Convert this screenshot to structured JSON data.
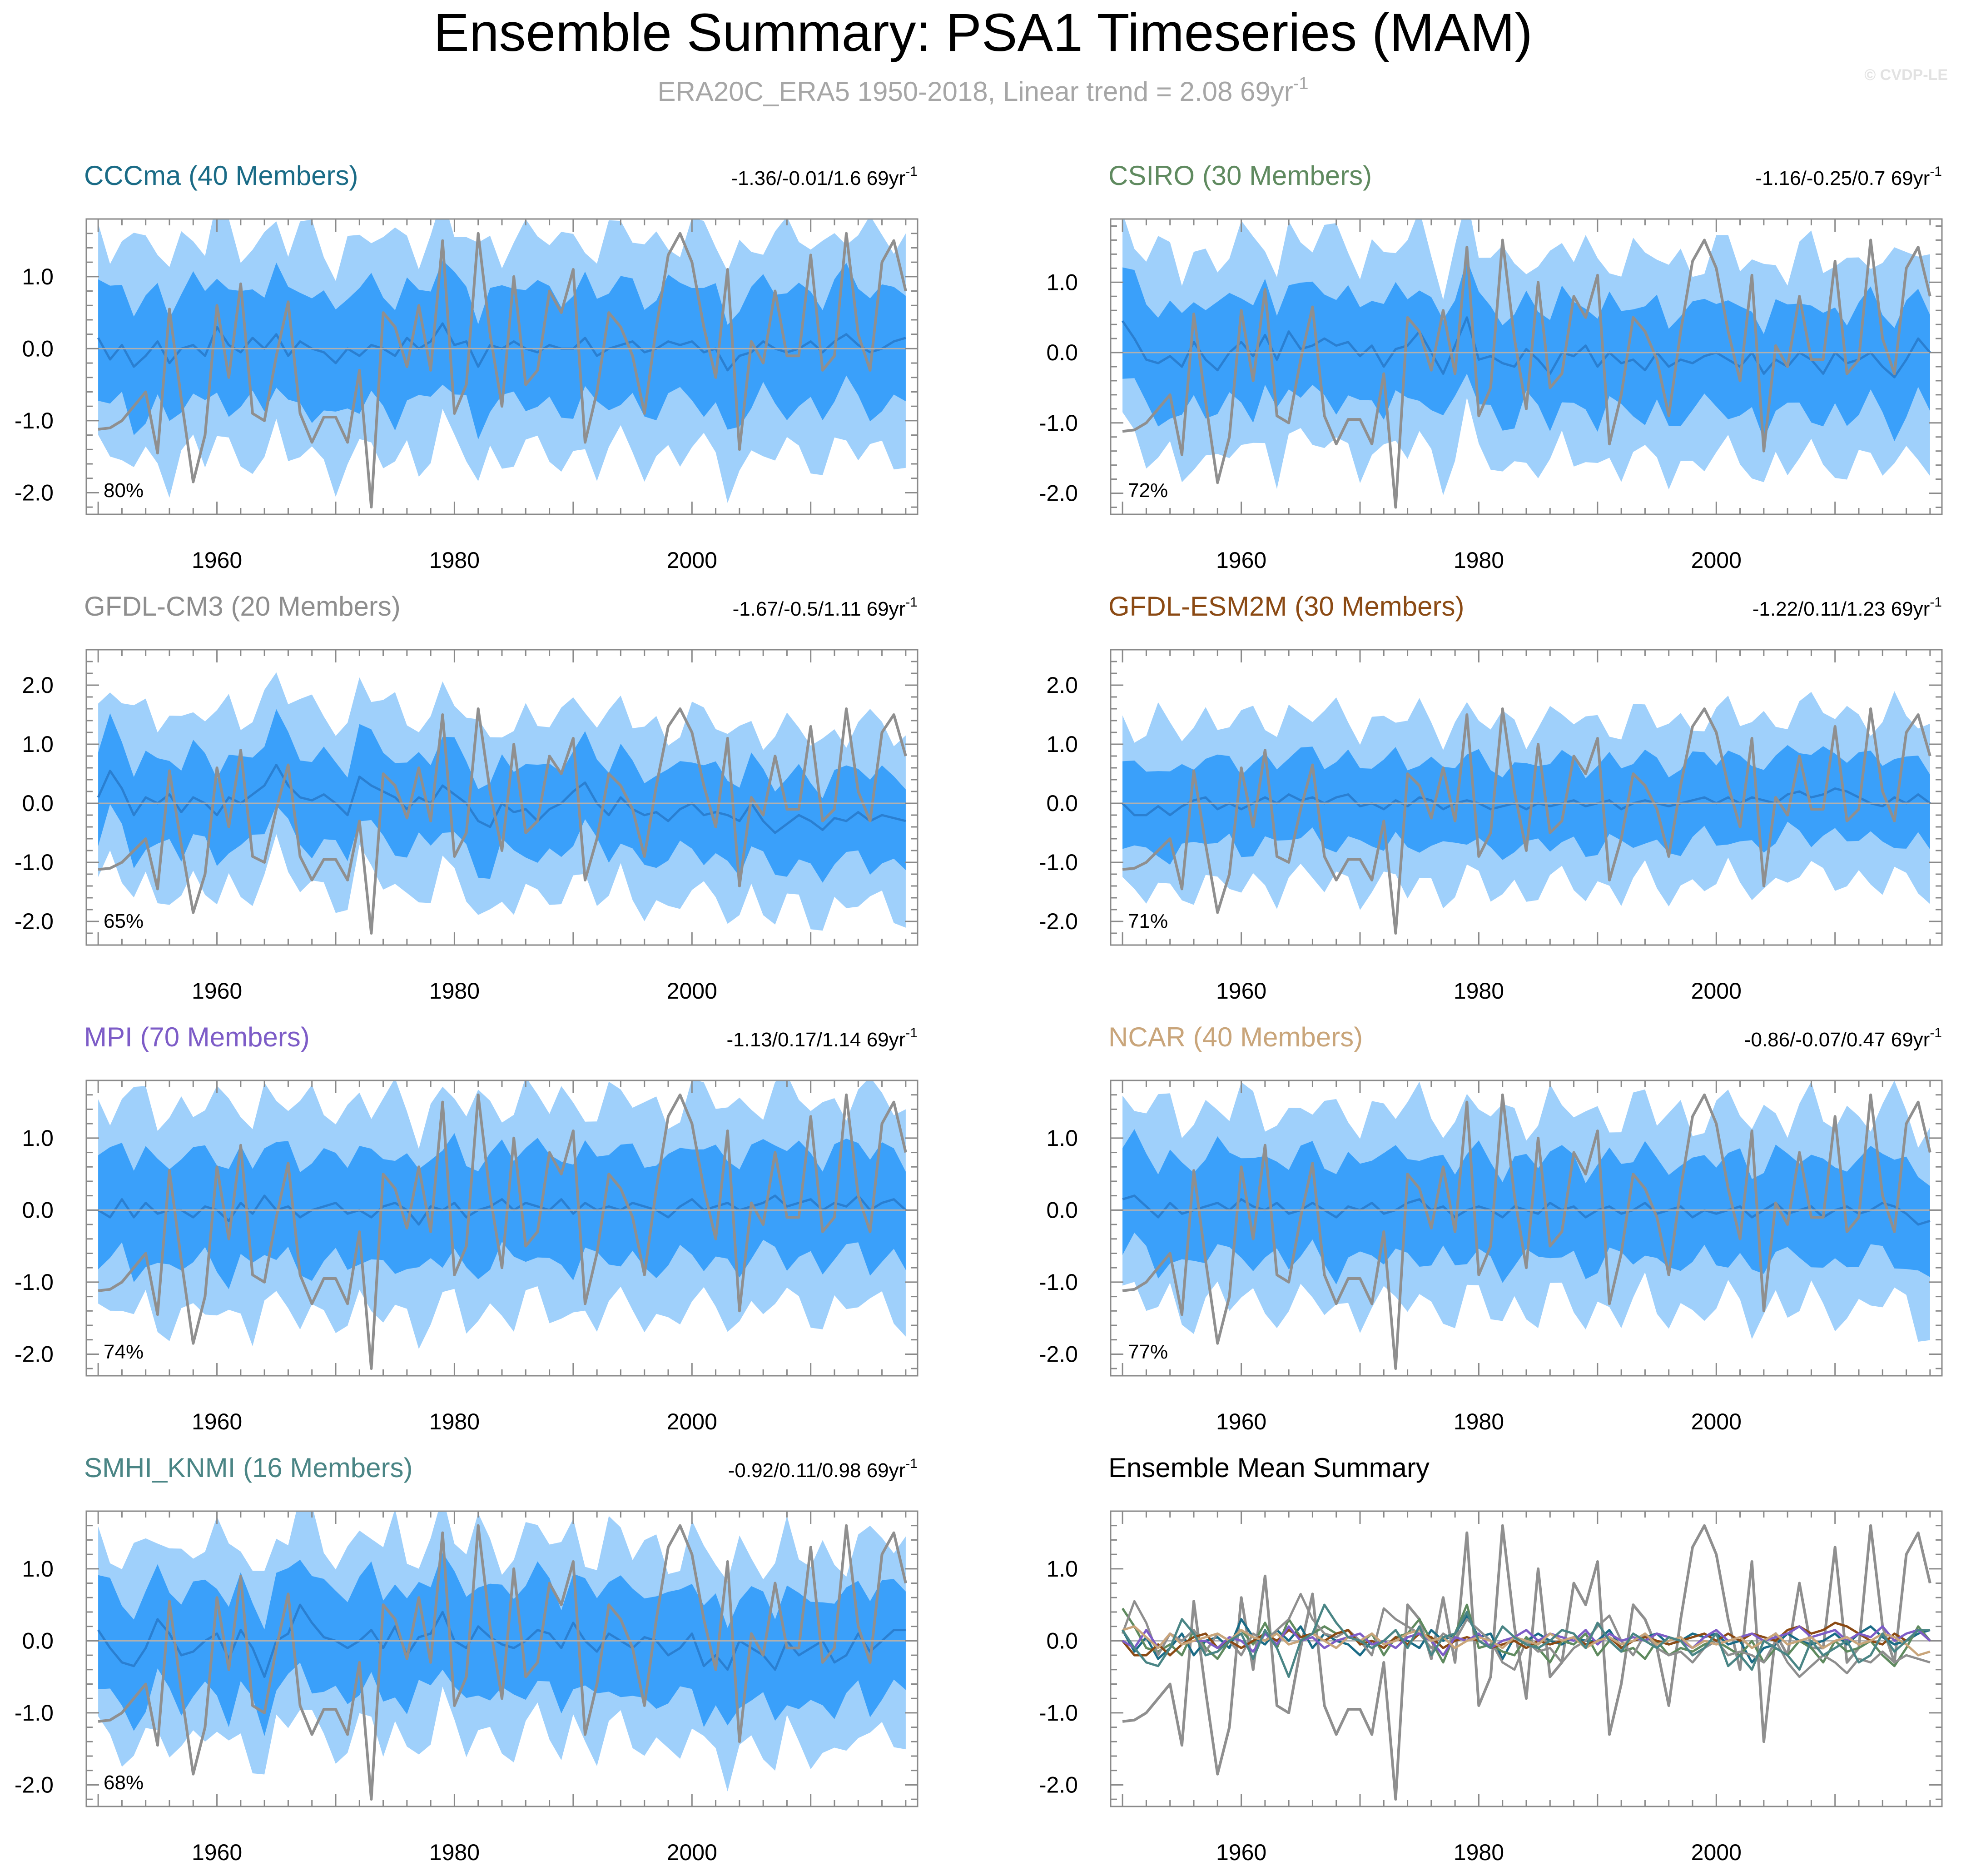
{
  "header": {
    "title": "Ensemble Summary: PSA1 Timeseries (MAM)",
    "subtitle_main": "ERA20C_ERA5 1950-2018, Linear trend = 2.08 69yr",
    "subtitle_sup": "-1",
    "watermark": "© CVDP-LE"
  },
  "colors": {
    "band_outer": "#9fd0fb",
    "band_inner": "#3aa0fa",
    "ens_mean": "#2a7fd1",
    "obs": "#8f8f8f",
    "zero_line": "#b0b0b0"
  },
  "chart_data": {
    "type": "line",
    "x_range": [
      1949,
      2019
    ],
    "x_ticks": [
      1960,
      1980,
      2000
    ],
    "x_tick_labels": [
      "1960",
      "1980",
      "2000"
    ],
    "observations": {
      "name": "ERA20C_ERA5",
      "x": [
        1950,
        1951,
        1952,
        1953,
        1954,
        1955,
        1956,
        1957,
        1958,
        1959,
        1960,
        1961,
        1962,
        1963,
        1964,
        1965,
        1966,
        1967,
        1968,
        1969,
        1970,
        1971,
        1972,
        1973,
        1974,
        1975,
        1976,
        1977,
        1978,
        1979,
        1980,
        1981,
        1982,
        1983,
        1984,
        1985,
        1986,
        1987,
        1988,
        1989,
        1990,
        1991,
        1992,
        1993,
        1994,
        1995,
        1996,
        1997,
        1998,
        1999,
        2000,
        2001,
        2002,
        2003,
        2004,
        2005,
        2006,
        2007,
        2008,
        2009,
        2010,
        2011,
        2012,
        2013,
        2014,
        2015,
        2016,
        2017,
        2018
      ],
      "values": [
        -1.12,
        -1.1,
        -1.0,
        -0.8,
        -0.6,
        -1.45,
        0.55,
        -0.7,
        -1.85,
        -1.2,
        0.6,
        -0.4,
        0.9,
        -0.9,
        -1.0,
        -0.1,
        0.65,
        -0.9,
        -1.3,
        -0.95,
        -0.95,
        -1.3,
        -0.3,
        -2.2,
        0.5,
        0.3,
        -0.25,
        0.6,
        -0.3,
        1.5,
        -0.9,
        -0.5,
        1.6,
        0.2,
        -0.8,
        1.0,
        -0.5,
        -0.3,
        0.8,
        0.5,
        1.1,
        -1.3,
        -0.6,
        0.5,
        0.3,
        -0.1,
        -0.9,
        0.3,
        1.3,
        1.6,
        1.2,
        0.3,
        -0.4,
        1.1,
        -1.4,
        0.1,
        -0.2,
        0.8,
        -0.1,
        -0.1,
        1.3,
        -0.3,
        -0.1,
        1.6,
        0.2,
        -0.3,
        1.2,
        1.5,
        0.8
      ]
    },
    "panels": [
      {
        "name": "CCCma",
        "members": 40,
        "title": "CCCma (40 Members)",
        "title_color": "#1a6b86",
        "trend_text": "-1.36/-0.01/1.6 69yr",
        "pct_label": "80%",
        "ylim": [
          -2.3,
          1.8
        ],
        "y_ticks": [
          1.0,
          0.0,
          -1.0,
          -2.0
        ],
        "y_tick_labels": [
          "1.0",
          "0.0",
          "-1.0",
          "-2.0"
        ],
        "ens_mean": [
          0.15,
          -0.15,
          0.05,
          -0.25,
          -0.1,
          0.1,
          -0.2,
          0.0,
          0.05,
          -0.1,
          0.3,
          0.05,
          -0.05,
          0.15,
          0.0,
          0.2,
          -0.1,
          0.1,
          0.0,
          -0.05,
          -0.2,
          0.0,
          -0.1,
          0.05,
          0.0,
          -0.1,
          0.15,
          0.0,
          0.1,
          0.35,
          0.05,
          0.1,
          -0.25,
          0.05,
          0.0,
          0.1,
          0.0,
          -0.05,
          0.05,
          0.0,
          0.0,
          0.15,
          -0.1,
          0.0,
          0.05,
          0.1,
          -0.05,
          0.0,
          0.1,
          0.05,
          0.1,
          -0.05,
          0.0,
          -0.3,
          -0.1,
          -0.05,
          0.1,
          0.0,
          -0.05,
          0.0,
          0.1,
          -0.05,
          0.1,
          0.2,
          0.05,
          -0.05,
          0.0,
          0.1,
          0.15
        ],
        "band_halfwidths": [
          1.5,
          0.8
        ]
      },
      {
        "name": "CSIRO",
        "members": 30,
        "title": "CSIRO (30 Members)",
        "title_color": "#5f8a5f",
        "trend_text": "-1.16/-0.25/0.7 69yr",
        "pct_label": "72%",
        "ylim": [
          -2.3,
          1.9
        ],
        "y_ticks": [
          1.0,
          0.0,
          -1.0,
          -2.0
        ],
        "y_tick_labels": [
          "1.0",
          "0.0",
          "-1.0",
          "-2.0"
        ],
        "ens_mean": [
          0.45,
          0.2,
          -0.1,
          -0.15,
          -0.05,
          -0.2,
          0.15,
          -0.1,
          -0.25,
          0.0,
          0.15,
          -0.05,
          0.25,
          -0.1,
          0.3,
          0.05,
          0.1,
          0.2,
          0.1,
          0.15,
          -0.05,
          0.1,
          -0.2,
          0.05,
          0.1,
          0.3,
          0.0,
          -0.3,
          0.1,
          0.5,
          -0.1,
          -0.05,
          -0.15,
          -0.2,
          0.05,
          -0.1,
          -0.3,
          0.0,
          -0.05,
          0.1,
          -0.2,
          0.0,
          -0.15,
          -0.1,
          -0.25,
          0.0,
          -0.2,
          -0.1,
          -0.15,
          -0.05,
          0.0,
          -0.1,
          -0.2,
          0.0,
          -0.3,
          -0.1,
          -0.2,
          0.0,
          -0.1,
          -0.3,
          0.0,
          -0.15,
          -0.1,
          0.0,
          -0.2,
          -0.35,
          -0.1,
          0.2,
          0.0
        ],
        "band_halfwidths": [
          1.45,
          0.75
        ]
      },
      {
        "name": "GFDL-CM3",
        "members": 20,
        "title": "GFDL-CM3 (20 Members)",
        "title_color": "#8e8e8e",
        "trend_text": "-1.67/-0.5/1.11 69yr",
        "pct_label": "65%",
        "ylim": [
          -2.4,
          2.6
        ],
        "y_ticks": [
          2.0,
          1.0,
          0.0,
          -1.0,
          -2.0
        ],
        "y_tick_labels": [
          "2.0",
          "1.0",
          "0.0",
          "-1.0",
          "-2.0"
        ],
        "ens_mean": [
          0.1,
          0.55,
          0.25,
          -0.2,
          0.1,
          0.0,
          0.15,
          -0.15,
          0.1,
          0.0,
          -0.2,
          0.1,
          0.0,
          0.15,
          0.3,
          0.65,
          0.3,
          0.1,
          0.05,
          0.15,
          0.0,
          -0.2,
          0.45,
          0.3,
          0.2,
          0.1,
          -0.1,
          0.1,
          0.0,
          0.3,
          0.15,
          0.0,
          -0.3,
          -0.4,
          0.0,
          -0.15,
          -0.1,
          -0.3,
          -0.1,
          0.0,
          0.2,
          0.35,
          0.0,
          -0.2,
          0.1,
          -0.1,
          -0.2,
          -0.15,
          -0.3,
          -0.1,
          0.0,
          -0.2,
          -0.15,
          -0.2,
          -0.3,
          0.0,
          -0.3,
          -0.5,
          -0.35,
          -0.2,
          -0.3,
          -0.45,
          -0.25,
          -0.3,
          -0.15,
          -0.3,
          -0.2,
          -0.25,
          -0.3
        ],
        "band_halfwidths": [
          1.5,
          0.75
        ]
      },
      {
        "name": "GFDL-ESM2M",
        "members": 30,
        "title": "GFDL-ESM2M (30 Members)",
        "title_color": "#8b4a14",
        "trend_text": "-1.22/0.11/1.23 69yr",
        "pct_label": "71%",
        "ylim": [
          -2.4,
          2.6
        ],
        "y_ticks": [
          2.0,
          1.0,
          0.0,
          -1.0,
          -2.0
        ],
        "y_tick_labels": [
          "2.0",
          "1.0",
          "0.0",
          "-1.0",
          "-2.0"
        ],
        "ens_mean": [
          0.0,
          -0.2,
          -0.2,
          -0.05,
          -0.2,
          -0.05,
          0.05,
          0.1,
          -0.1,
          0.0,
          -0.1,
          0.0,
          0.1,
          0.0,
          0.15,
          0.05,
          0.1,
          0.0,
          0.1,
          0.15,
          -0.05,
          0.0,
          -0.1,
          0.05,
          -0.05,
          0.1,
          0.05,
          -0.1,
          0.0,
          0.05,
          0.0,
          -0.1,
          -0.05,
          0.0,
          -0.1,
          0.0,
          -0.05,
          0.0,
          0.05,
          -0.05,
          0.0,
          0.05,
          -0.1,
          0.0,
          0.05,
          0.0,
          -0.05,
          0.0,
          0.05,
          0.1,
          0.0,
          0.1,
          0.0,
          0.1,
          0.05,
          0.0,
          0.15,
          0.2,
          0.1,
          0.15,
          0.25,
          0.2,
          0.1,
          0.0,
          -0.05,
          0.1,
          0.0,
          0.15,
          0.0
        ],
        "band_halfwidths": [
          1.4,
          0.7
        ]
      },
      {
        "name": "MPI",
        "members": 70,
        "title": "MPI (70 Members)",
        "title_color": "#7d5cc7",
        "trend_text": "-1.13/0.17/1.14 69yr",
        "pct_label": "74%",
        "ylim": [
          -2.3,
          1.8
        ],
        "y_ticks": [
          1.0,
          0.0,
          -1.0,
          -2.0
        ],
        "y_tick_labels": [
          "1.0",
          "0.0",
          "-1.0",
          "-2.0"
        ],
        "ens_mean": [
          0.0,
          -0.1,
          0.15,
          -0.1,
          0.1,
          -0.05,
          0.0,
          0.0,
          -0.1,
          0.05,
          0.0,
          -0.15,
          0.1,
          -0.05,
          0.2,
          0.0,
          0.05,
          -0.1,
          0.0,
          0.05,
          0.1,
          -0.05,
          0.0,
          -0.1,
          0.05,
          0.1,
          0.0,
          -0.2,
          0.05,
          0.0,
          0.1,
          -0.1,
          0.0,
          0.05,
          0.15,
          0.0,
          0.1,
          0.05,
          0.0,
          0.15,
          -0.05,
          0.1,
          0.0,
          0.05,
          0.0,
          0.1,
          0.05,
          0.0,
          -0.1,
          0.05,
          0.15,
          0.0,
          0.05,
          0.1,
          0.0,
          0.05,
          0.1,
          0.2,
          0.05,
          0.1,
          0.15,
          0.0,
          0.1,
          0.05,
          0.2,
          0.0,
          0.1,
          0.15,
          0.0
        ],
        "band_halfwidths": [
          1.45,
          0.75
        ]
      },
      {
        "name": "NCAR",
        "members": 40,
        "title": "NCAR (40 Members)",
        "title_color": "#c9a57a",
        "trend_text": "-0.86/-0.07/0.47 69yr",
        "pct_label": "77%",
        "ylim": [
          -2.3,
          1.8
        ],
        "y_ticks": [
          1.0,
          0.0,
          -1.0,
          -2.0
        ],
        "y_tick_labels": [
          "1.0",
          "0.0",
          "-1.0",
          "-2.0"
        ],
        "ens_mean": [
          0.15,
          0.2,
          0.05,
          -0.1,
          0.1,
          -0.05,
          0.0,
          0.05,
          0.1,
          0.0,
          0.15,
          0.05,
          0.0,
          0.1,
          -0.05,
          0.0,
          0.1,
          0.0,
          -0.1,
          0.05,
          0.0,
          0.1,
          -0.05,
          0.0,
          0.1,
          0.15,
          0.0,
          0.05,
          -0.1,
          0.0,
          0.05,
          0.0,
          -0.1,
          0.05,
          0.0,
          -0.05,
          0.1,
          0.0,
          0.05,
          -0.1,
          0.0,
          0.05,
          -0.05,
          0.0,
          0.1,
          -0.05,
          0.0,
          0.05,
          -0.1,
          0.0,
          -0.05,
          0.0,
          0.05,
          -0.1,
          0.0,
          0.1,
          -0.05,
          0.0,
          0.05,
          -0.1,
          0.0,
          0.05,
          -0.05,
          0.0,
          0.1,
          0.05,
          -0.05,
          -0.2,
          -0.15
        ],
        "band_halfwidths": [
          1.35,
          0.7
        ]
      },
      {
        "name": "SMHI_KNMI",
        "members": 16,
        "title": "SMHI_KNMI (16 Members)",
        "title_color": "#4a8585",
        "trend_text": "-0.92/0.11/0.98 69yr",
        "pct_label": "68%",
        "ylim": [
          -2.3,
          1.8
        ],
        "y_ticks": [
          1.0,
          0.0,
          -1.0,
          -2.0
        ],
        "y_tick_labels": [
          "1.0",
          "0.0",
          "-1.0",
          "-2.0"
        ],
        "ens_mean": [
          0.15,
          -0.1,
          -0.3,
          -0.35,
          -0.1,
          0.3,
          0.1,
          -0.2,
          -0.15,
          0.0,
          0.1,
          -0.25,
          0.15,
          -0.1,
          -0.5,
          0.0,
          0.1,
          0.5,
          0.25,
          0.05,
          0.0,
          -0.1,
          0.0,
          0.15,
          -0.1,
          0.2,
          -0.2,
          0.05,
          0.1,
          0.4,
          0.0,
          -0.1,
          0.2,
          0.05,
          -0.05,
          -0.1,
          0.0,
          0.15,
          0.1,
          -0.1,
          0.25,
          0.0,
          -0.15,
          0.1,
          0.0,
          -0.1,
          0.05,
          0.0,
          -0.2,
          -0.1,
          0.1,
          -0.35,
          -0.2,
          -0.4,
          0.0,
          -0.1,
          -0.2,
          -0.4,
          0.0,
          -0.2,
          -0.1,
          0.0,
          -0.3,
          -0.2,
          0.1,
          -0.15,
          0.0,
          0.15,
          0.15
        ],
        "band_halfwidths": [
          1.35,
          0.75
        ]
      }
    ],
    "summary_panel": {
      "title": "Ensemble Mean Summary",
      "title_color": "#000000",
      "ylim": [
        -2.3,
        1.8
      ],
      "y_ticks": [
        1.0,
        0.0,
        -1.0,
        -2.0
      ],
      "y_tick_labels": [
        "1.0",
        "0.0",
        "-1.0",
        "-2.0"
      ],
      "series_colors": [
        "#1a6b86",
        "#5f8a5f",
        "#8e8e8e",
        "#8b4a14",
        "#7d5cc7",
        "#c9a57a",
        "#4a8585"
      ]
    }
  }
}
